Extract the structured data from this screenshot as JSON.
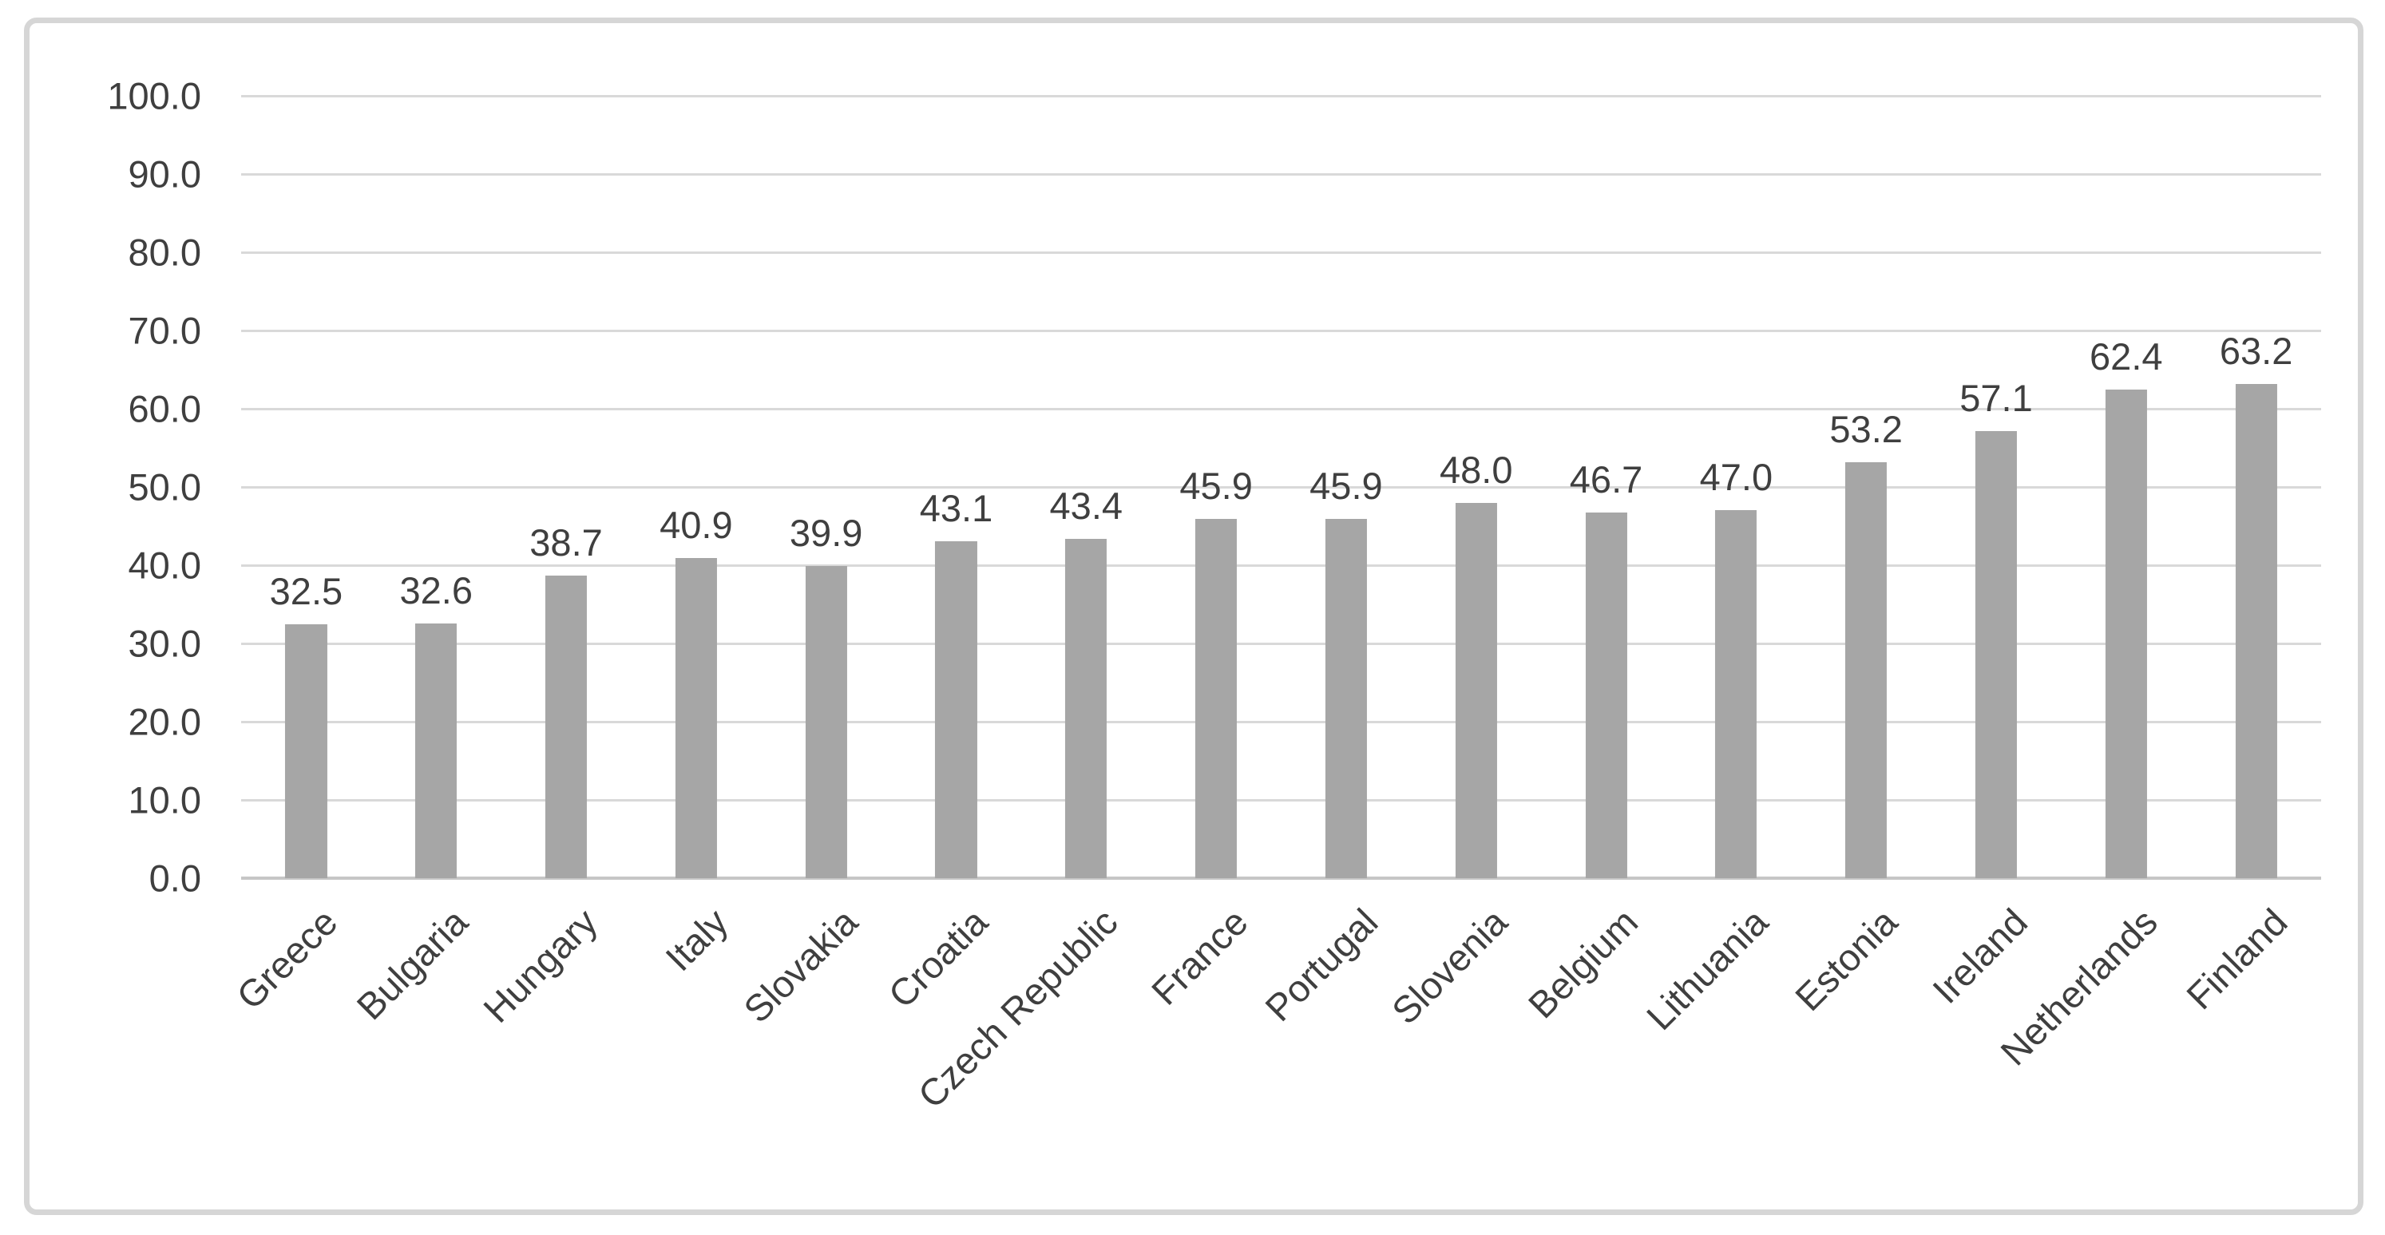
{
  "chart_data": {
    "type": "bar",
    "title": "",
    "xlabel": "",
    "ylabel": "",
    "categories": [
      "Greece",
      "Bulgaria",
      "Hungary",
      "Italy",
      "Slovakia",
      "Croatia",
      "Czech Republic",
      "France",
      "Portugal",
      "Slovenia",
      "Belgium",
      "Lithuania",
      "Estonia",
      "Ireland",
      "Netherlands",
      "Finland"
    ],
    "values": [
      32.5,
      32.6,
      38.7,
      40.9,
      39.9,
      43.1,
      43.4,
      45.9,
      45.9,
      48.0,
      46.7,
      47.0,
      53.2,
      57.1,
      62.4,
      63.2
    ],
    "data_labels": [
      "32.5",
      "32.6",
      "38.7",
      "40.9",
      "39.9",
      "43.1",
      "43.4",
      "45.9",
      "45.9",
      "48.0",
      "46.7",
      "47.0",
      "53.2",
      "57.1",
      "62.4",
      "63.2"
    ],
    "ylim": [
      0,
      100
    ],
    "ytick_values": [
      0,
      10,
      20,
      30,
      40,
      50,
      60,
      70,
      80,
      90,
      100
    ],
    "ytick_labels": [
      "0.0",
      "10.0",
      "20.0",
      "30.0",
      "40.0",
      "50.0",
      "60.0",
      "70.0",
      "80.0",
      "90.0",
      "100.0"
    ],
    "grid": "horizontal",
    "legend": "none",
    "category_label_rotation_deg": -45,
    "colors": {
      "bar_fill": "#a6a6a6",
      "gridline": "#d9d9d9",
      "axis_line": "#c6c6c6",
      "text": "#3f3f3f",
      "chart_border": "#d6d6d6",
      "background": "#ffffff"
    }
  }
}
